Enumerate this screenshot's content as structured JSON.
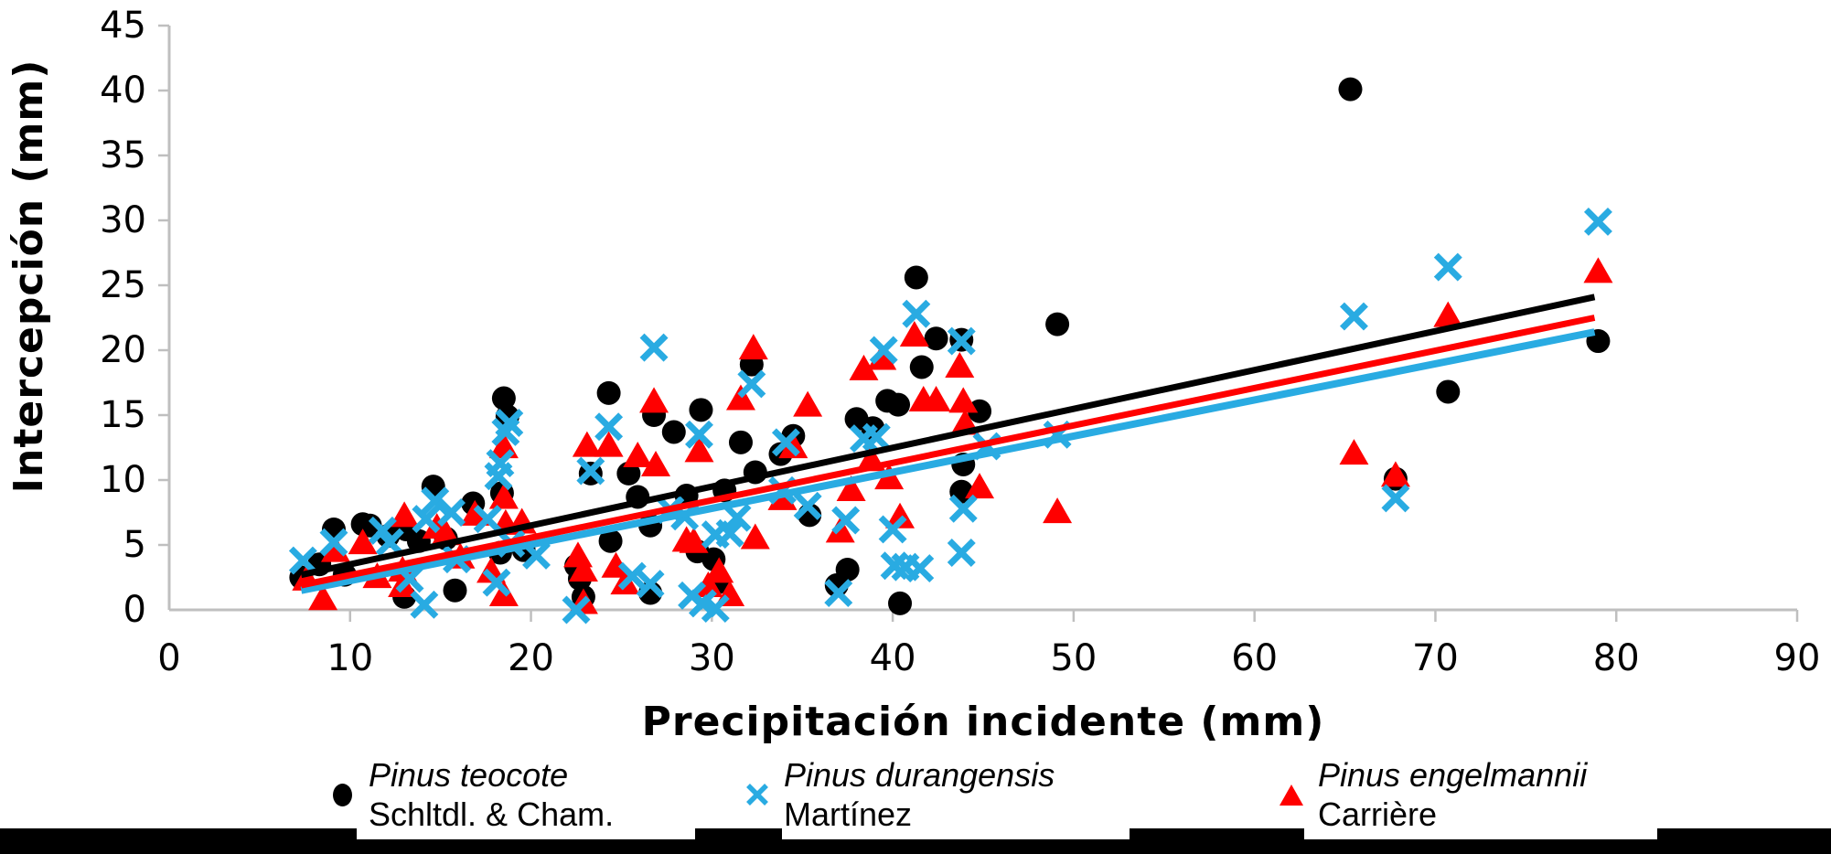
{
  "chart_data": {
    "type": "scatter",
    "title": "",
    "xlabel": "Precipitación incidente (mm)",
    "ylabel": "Intercepción (mm)",
    "xlim": [
      0,
      90
    ],
    "ylim": [
      0,
      45
    ],
    "x_ticks": [
      0,
      10,
      20,
      30,
      40,
      50,
      60,
      70,
      80,
      90
    ],
    "y_ticks": [
      0,
      5,
      10,
      15,
      20,
      25,
      30,
      35,
      40,
      45
    ],
    "grid": false,
    "legend_position": "bottom",
    "axis_color": "#BFBFBF",
    "series": [
      {
        "id": "teocote",
        "label_species": "Pinus teocote",
        "label_authority": "Schltdl. & Cham.",
        "marker": "circle",
        "color": "#000000",
        "trendline": {
          "x": [
            7.3,
            78.8
          ],
          "y": [
            2.7,
            24.1
          ]
        },
        "points": [
          [
            7.3,
            2.5
          ],
          [
            8.3,
            3.5
          ],
          [
            9.1,
            6.2
          ],
          [
            9.7,
            2.7
          ],
          [
            10.7,
            6.6
          ],
          [
            11.1,
            6.5
          ],
          [
            12.1,
            5.7
          ],
          [
            13.1,
            6.2
          ],
          [
            13.8,
            5.3
          ],
          [
            13.0,
            1.0
          ],
          [
            14.6,
            9.5
          ],
          [
            15.3,
            5.5
          ],
          [
            15.8,
            1.5
          ],
          [
            16.8,
            8.2
          ],
          [
            18.4,
            9.0
          ],
          [
            18.5,
            16.3
          ],
          [
            18.7,
            14.9
          ],
          [
            18.3,
            4.4
          ],
          [
            19.6,
            4.6
          ],
          [
            22.5,
            3.4
          ],
          [
            22.7,
            2.4
          ],
          [
            22.9,
            1.0
          ],
          [
            23.3,
            10.5
          ],
          [
            24.3,
            16.7
          ],
          [
            24.4,
            5.3
          ],
          [
            25.4,
            10.5
          ],
          [
            25.9,
            8.7
          ],
          [
            26.6,
            6.5
          ],
          [
            26.6,
            1.3
          ],
          [
            26.8,
            15.0
          ],
          [
            27.9,
            13.7
          ],
          [
            28.6,
            8.8
          ],
          [
            29.2,
            4.5
          ],
          [
            29.4,
            15.4
          ],
          [
            30.1,
            3.9
          ],
          [
            30.3,
            2.1
          ],
          [
            30.7,
            9.2
          ],
          [
            31.6,
            12.9
          ],
          [
            32.2,
            18.9
          ],
          [
            32.4,
            10.6
          ],
          [
            33.8,
            12.0
          ],
          [
            34.5,
            13.4
          ],
          [
            35.4,
            7.3
          ],
          [
            36.9,
            1.9
          ],
          [
            37.5,
            3.1
          ],
          [
            38.0,
            14.7
          ],
          [
            38.9,
            14.0
          ],
          [
            39.7,
            16.1
          ],
          [
            40.3,
            15.8
          ],
          [
            40.4,
            0.5
          ],
          [
            41.3,
            25.6
          ],
          [
            41.6,
            18.7
          ],
          [
            42.4,
            20.9
          ],
          [
            43.8,
            20.8
          ],
          [
            43.8,
            9.1
          ],
          [
            43.9,
            11.2
          ],
          [
            44.8,
            15.3
          ],
          [
            49.1,
            22.0
          ],
          [
            65.3,
            40.1
          ],
          [
            67.8,
            10.1
          ],
          [
            70.7,
            16.8
          ],
          [
            79.0,
            20.7
          ]
        ]
      },
      {
        "id": "durangensis",
        "label_species": "Pinus durangensis",
        "label_authority": "Martínez",
        "marker": "x",
        "color": "#29ABE2",
        "trendline": {
          "x": [
            7.3,
            78.8
          ],
          "y": [
            1.5,
            21.4
          ]
        },
        "points": [
          [
            7.4,
            3.8
          ],
          [
            9.1,
            5.2
          ],
          [
            11.8,
            6.1
          ],
          [
            12.2,
            5.2
          ],
          [
            13.3,
            2.4
          ],
          [
            14.1,
            0.4
          ],
          [
            14.2,
            7.0
          ],
          [
            14.7,
            8.4
          ],
          [
            15.6,
            7.5
          ],
          [
            15.9,
            3.9
          ],
          [
            17.6,
            7.0
          ],
          [
            18.1,
            2.1
          ],
          [
            18.9,
            5.1
          ],
          [
            18.2,
            10.3
          ],
          [
            18.3,
            11.3
          ],
          [
            18.6,
            13.7
          ],
          [
            18.8,
            14.4
          ],
          [
            20.3,
            4.2
          ],
          [
            22.5,
            0.0
          ],
          [
            23.3,
            10.7
          ],
          [
            24.3,
            14.1
          ],
          [
            25.6,
            2.6
          ],
          [
            26.6,
            2.0
          ],
          [
            26.8,
            20.2
          ],
          [
            27.7,
            7.7
          ],
          [
            28.5,
            7.2
          ],
          [
            28.9,
            1.1
          ],
          [
            29.5,
            0.5
          ],
          [
            30.2,
            0.1
          ],
          [
            29.3,
            13.5
          ],
          [
            30.2,
            5.8
          ],
          [
            31.0,
            5.9
          ],
          [
            31.4,
            7.1
          ],
          [
            32.2,
            17.4
          ],
          [
            33.9,
            9.2
          ],
          [
            34.1,
            12.9
          ],
          [
            35.3,
            8.0
          ],
          [
            37.0,
            1.3
          ],
          [
            37.4,
            6.9
          ],
          [
            38.4,
            13.2
          ],
          [
            39.1,
            13.3
          ],
          [
            39.5,
            20.0
          ],
          [
            40.0,
            6.2
          ],
          [
            40.1,
            3.4
          ],
          [
            40.7,
            3.3
          ],
          [
            41.5,
            3.2
          ],
          [
            41.3,
            22.8
          ],
          [
            43.8,
            20.7
          ],
          [
            43.8,
            4.4
          ],
          [
            43.9,
            7.8
          ],
          [
            45.2,
            12.6
          ],
          [
            49.1,
            13.5
          ],
          [
            65.5,
            22.6
          ],
          [
            67.8,
            8.6
          ],
          [
            70.7,
            26.4
          ],
          [
            79.0,
            29.9
          ]
        ]
      },
      {
        "id": "engelmannii",
        "label_species": "Pinus engelmannii",
        "label_authority": "Carrière",
        "marker": "triangle",
        "color": "#FF0000",
        "trendline": {
          "x": [
            7.3,
            78.8
          ],
          "y": [
            1.9,
            22.5
          ]
        },
        "points": [
          [
            7.6,
            2.4
          ],
          [
            8.5,
            0.9
          ],
          [
            9.2,
            4.6
          ],
          [
            10.7,
            5.2
          ],
          [
            11.5,
            2.6
          ],
          [
            12.9,
            3.1
          ],
          [
            12.9,
            1.9
          ],
          [
            13.0,
            7.3
          ],
          [
            14.8,
            6.4
          ],
          [
            15.3,
            5.9
          ],
          [
            16.1,
            4.1
          ],
          [
            16.9,
            7.4
          ],
          [
            17.8,
            3.0
          ],
          [
            18.5,
            12.6
          ],
          [
            18.5,
            8.7
          ],
          [
            18.6,
            6.7
          ],
          [
            19.5,
            6.8
          ],
          [
            18.5,
            1.2
          ],
          [
            22.6,
            4.2
          ],
          [
            22.9,
            3.1
          ],
          [
            22.9,
            0.6
          ],
          [
            23.1,
            12.7
          ],
          [
            24.3,
            12.7
          ],
          [
            24.7,
            3.4
          ],
          [
            25.2,
            2.1
          ],
          [
            25.9,
            11.9
          ],
          [
            26.9,
            11.2
          ],
          [
            26.8,
            16.1
          ],
          [
            28.6,
            5.4
          ],
          [
            29.0,
            5.3
          ],
          [
            29.3,
            12.3
          ],
          [
            29.8,
            1.9
          ],
          [
            30.4,
            3.0
          ],
          [
            31.0,
            1.2
          ],
          [
            31.6,
            16.3
          ],
          [
            32.4,
            5.6
          ],
          [
            32.3,
            20.2
          ],
          [
            33.9,
            8.6
          ],
          [
            34.5,
            12.6
          ],
          [
            35.3,
            15.8
          ],
          [
            37.1,
            6.1
          ],
          [
            37.7,
            9.3
          ],
          [
            38.8,
            11.6
          ],
          [
            38.4,
            18.6
          ],
          [
            39.4,
            19.4
          ],
          [
            39.8,
            10.2
          ],
          [
            40.4,
            7.2
          ],
          [
            41.2,
            21.2
          ],
          [
            41.7,
            16.2
          ],
          [
            42.4,
            16.2
          ],
          [
            43.7,
            18.8
          ],
          [
            43.9,
            16.1
          ],
          [
            44.0,
            14.4
          ],
          [
            44.8,
            9.5
          ],
          [
            49.1,
            7.6
          ],
          [
            65.5,
            12.1
          ],
          [
            67.8,
            10.4
          ],
          [
            70.7,
            22.7
          ],
          [
            79.0,
            26.1
          ]
        ]
      }
    ]
  }
}
